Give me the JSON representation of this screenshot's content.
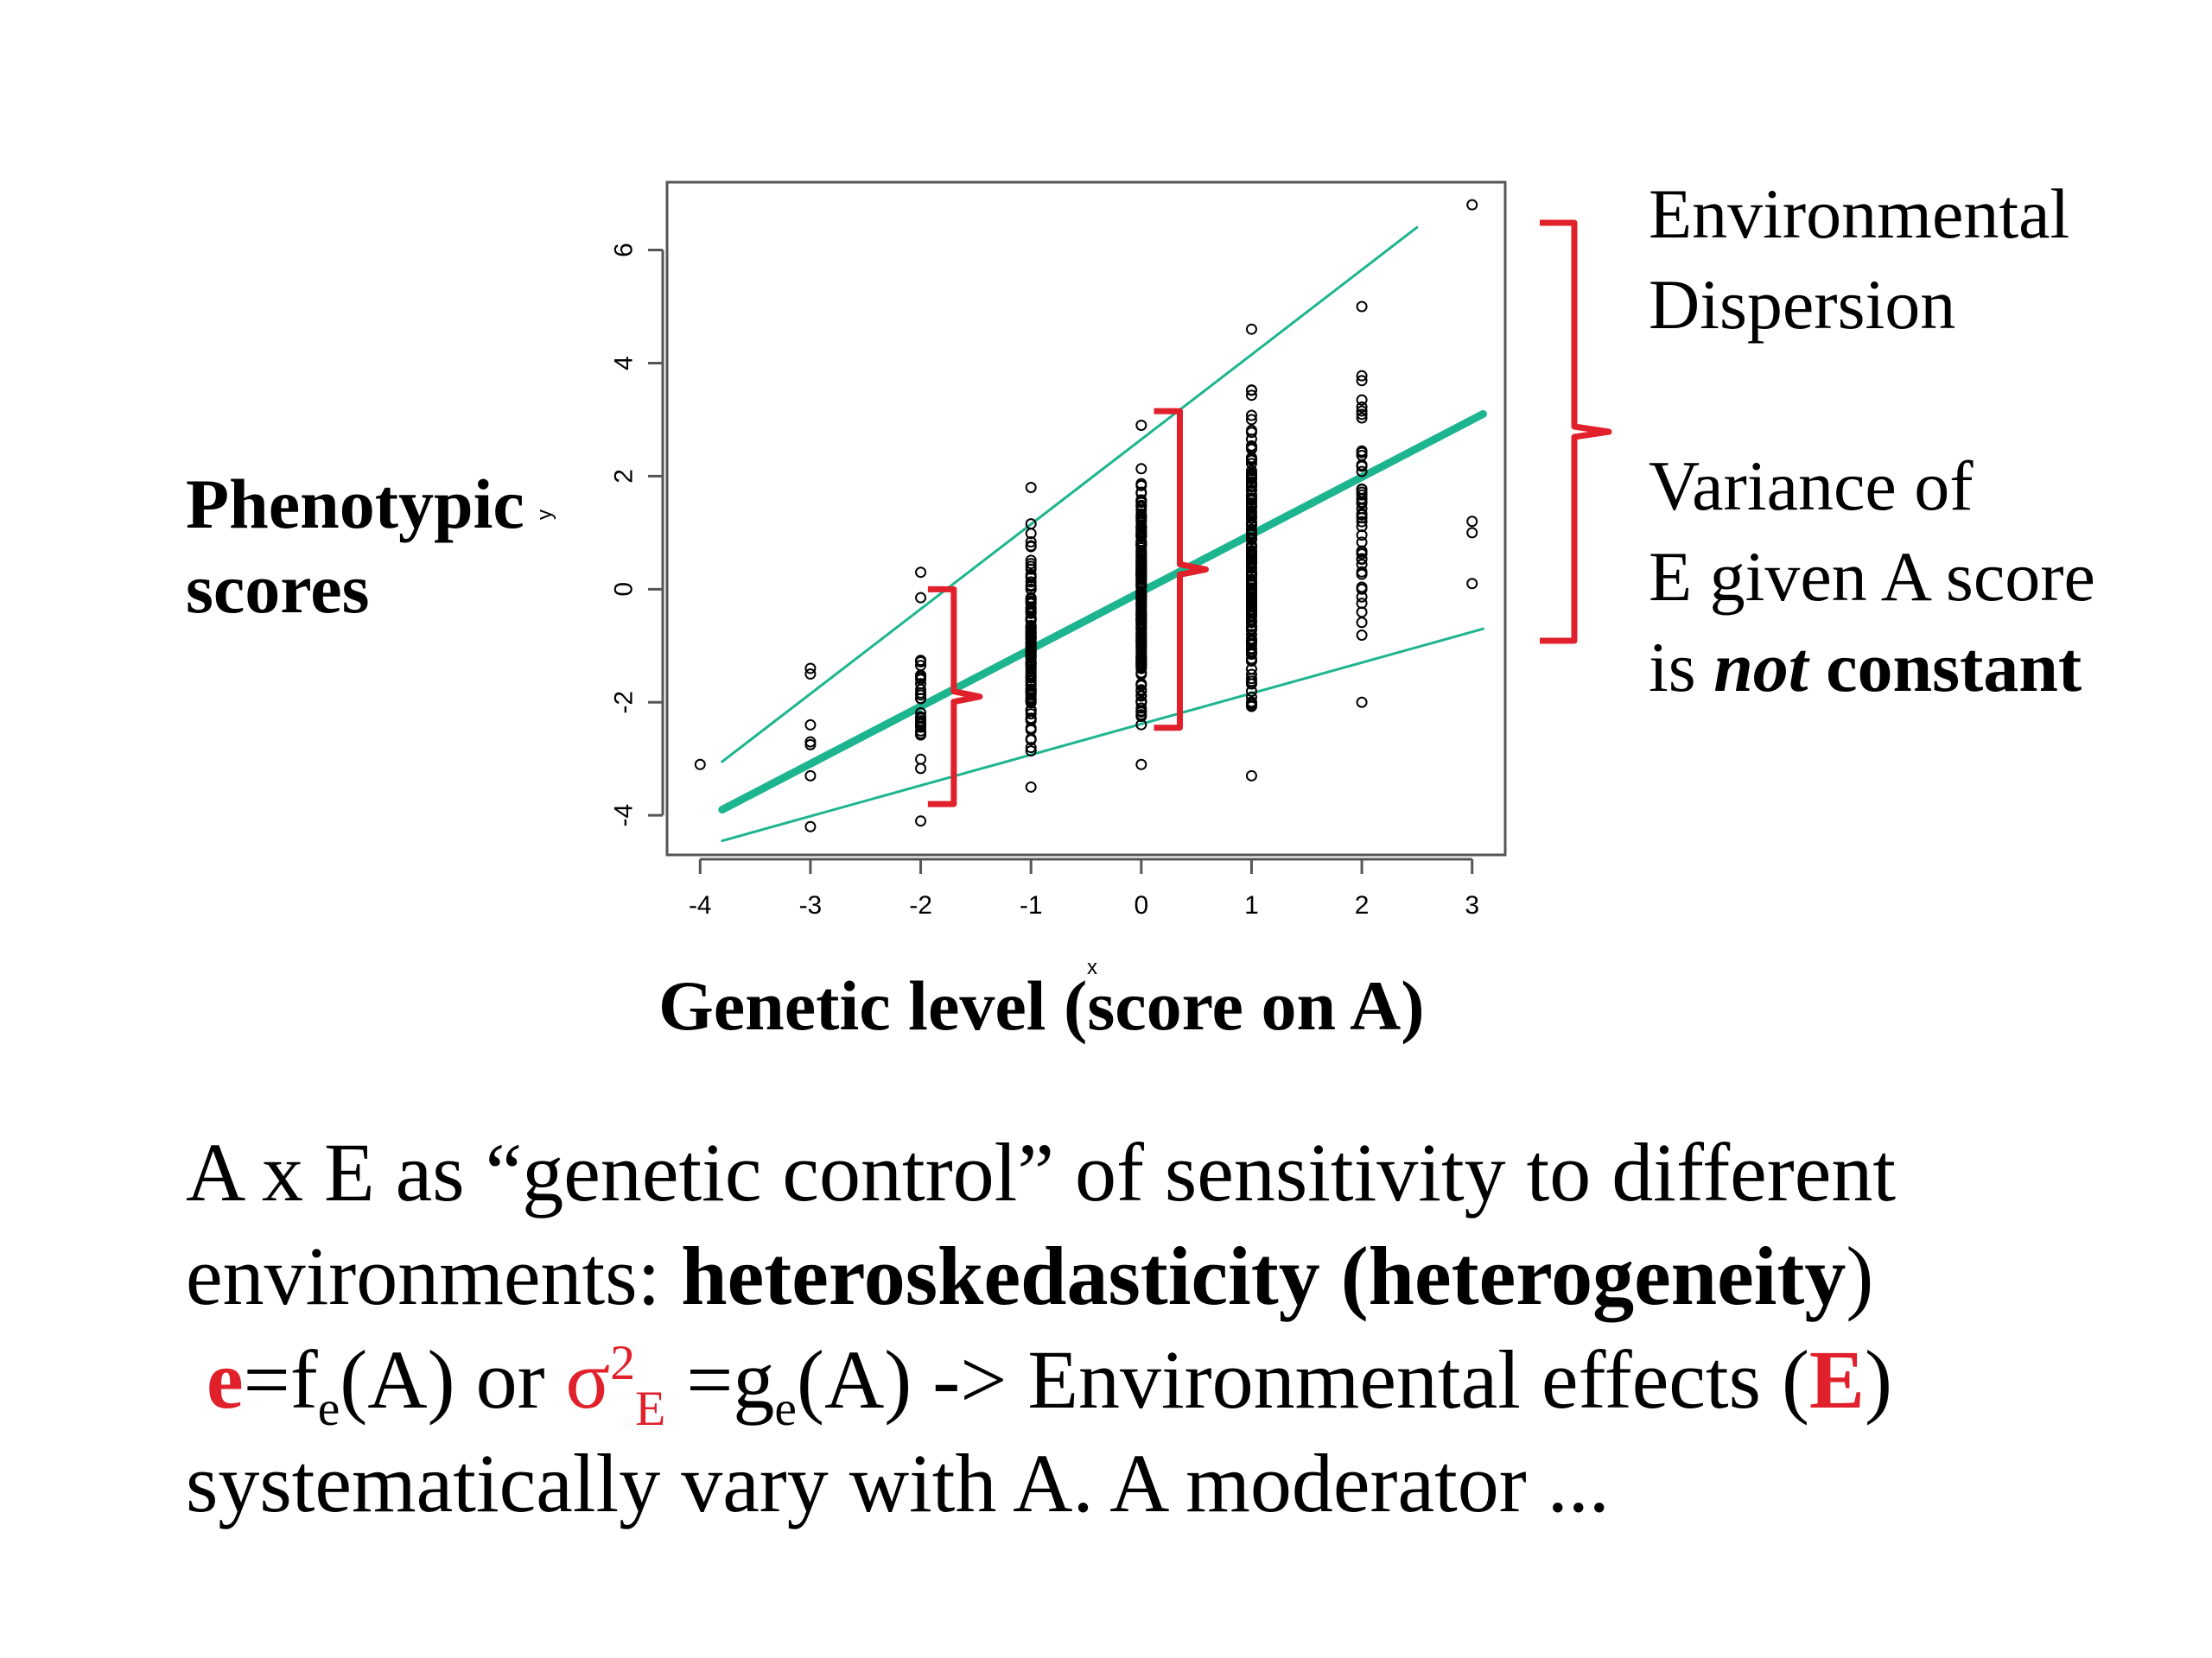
{
  "colors": {
    "regression": "#1db58f",
    "brace": "#e0202a",
    "text_red": "#e0202a"
  },
  "axis_labels": {
    "y_prefix": "Phenotypic",
    "y_suffix": "scores",
    "y_code": "y",
    "x_prefix": "Genetic level",
    "x_suffix": "(score on A)",
    "x_code": "x"
  },
  "annotations": {
    "dispersion_line1": "Environmental",
    "dispersion_line2": "Dispersion",
    "variance_line1": "Variance of",
    "variance_line2": "E given A score",
    "variance_line3_a": "is ",
    "variance_line3_b": "not",
    "variance_line3_c": " constant"
  },
  "body_text": {
    "line1": "A x E as “genetic control” of sensitivity to different",
    "line2_a": "environments: ",
    "line2_b": "heteroskedasticity (heterogeneity",
    "line2_c": ")",
    "line3_e": "e",
    "line3_f": "=f",
    "line3_sub1": "e",
    "line3_a": "(A) or ",
    "line3_sigma": "σ",
    "line3_sup": "2",
    "line3_sub2": "E",
    "line3_g": " =g",
    "line3_sub3": "e",
    "line3_rest": "(A) -> Environmental effects (",
    "line3_E": "E",
    "line3_close": ")",
    "line4": "systematically vary with A. A moderator ..."
  },
  "chart_data": {
    "type": "scatter",
    "xlabel": "x",
    "ylabel": "y",
    "xlim": [
      -4.3,
      3.3
    ],
    "ylim": [
      -4.7,
      7.2
    ],
    "xticks": [
      -4,
      -3,
      -2,
      -1,
      0,
      1,
      2,
      3
    ],
    "yticks": [
      -4,
      -2,
      0,
      2,
      4,
      6
    ],
    "tick_labels_x": [
      "-4",
      "-3",
      "-2",
      "-1",
      "0",
      "1",
      "2",
      "3"
    ],
    "tick_labels_y": [
      "-4",
      "-2",
      "0",
      "2",
      "4",
      "6"
    ],
    "points": [
      {
        "x": -4,
        "y": -3.1
      },
      {
        "x": -3,
        "y": -1.4
      },
      {
        "x": -3,
        "y": -1.5
      },
      {
        "x": -3,
        "y": -2.4
      },
      {
        "x": -3,
        "y": -2.7
      },
      {
        "x": -3,
        "y": -2.75
      },
      {
        "x": -3,
        "y": -3.3
      },
      {
        "x": -3,
        "y": -4.2
      },
      {
        "x": 3,
        "y": 6.8
      },
      {
        "x": 3,
        "y": 1.2
      },
      {
        "x": 3,
        "y": 1.0
      },
      {
        "x": 3,
        "y": 0.1
      }
    ],
    "columns": [
      {
        "x": -2,
        "ymin": -4.1,
        "ymax": 0.3,
        "n": 30
      },
      {
        "x": -1,
        "ymin": -3.5,
        "ymax": 1.8,
        "n": 120
      },
      {
        "x": 0,
        "ymin": -3.1,
        "ymax": 2.9,
        "n": 200
      },
      {
        "x": 1,
        "ymin": -3.3,
        "ymax": 4.6,
        "n": 160
      },
      {
        "x": 2,
        "ymin": -2.0,
        "ymax": 5.0,
        "n": 45
      }
    ],
    "fit_lines": [
      {
        "role": "mean",
        "x": [
          -3.8,
          3.1
        ],
        "y": [
          -3.9,
          3.1
        ]
      },
      {
        "role": "upper",
        "x": [
          -3.8,
          2.5
        ],
        "y": [
          -3.05,
          6.4
        ]
      },
      {
        "role": "lower",
        "x": [
          -3.8,
          3.1
        ],
        "y": [
          -4.45,
          -0.7
        ]
      }
    ],
    "braces": [
      {
        "x": -1.7,
        "ymin": -3.8,
        "ymax": 0.0
      },
      {
        "x": 0.35,
        "ymin": -2.45,
        "ymax": 3.15
      },
      {
        "x": 3.9,
        "ymin": -0.9,
        "ymax": 6.4
      }
    ]
  }
}
